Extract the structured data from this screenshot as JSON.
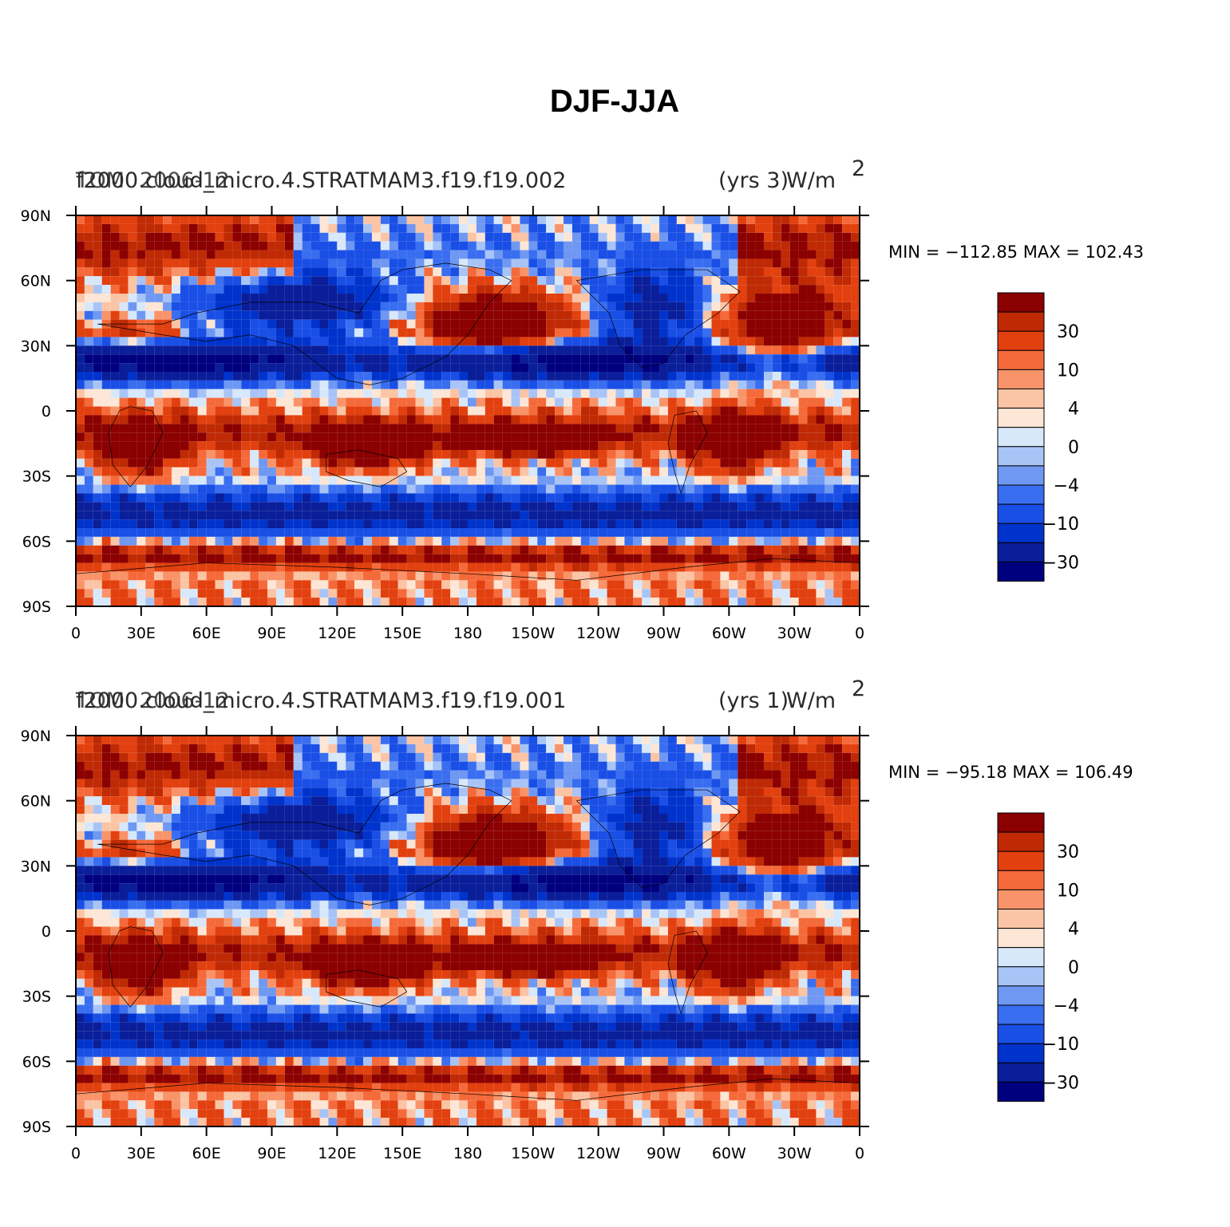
{
  "figure_title": "DJF-JJA",
  "palette": [
    "#00007f",
    "#0a1e9a",
    "#0033cc",
    "#1a4fe6",
    "#3a6ef0",
    "#6f98f2",
    "#a8c4f7",
    "#d8e8fb",
    "#fde6d5",
    "#fbc4a4",
    "#f9946a",
    "#f56a3a",
    "#e2400f",
    "#bf2a05",
    "#8b0000"
  ],
  "coastline_color": "#000000",
  "chart_data": [
    {
      "type": "heatmap",
      "name": "contour-map-top",
      "case_label": "f2000.cloud_micro.4.STRATMAM3.f19.f19.002",
      "overlap_label_1": "TOM",
      "overlap_label_2": "2006-12",
      "years_label": "(yrs 3)",
      "years_overlap": "W/m",
      "units_sup": "2",
      "min_max": "MIN = −112.85 MAX = 102.43",
      "x_ticks": [
        "0",
        "30E",
        "60E",
        "90E",
        "120E",
        "150E",
        "180",
        "150W",
        "120W",
        "90W",
        "60W",
        "30W",
        "0"
      ],
      "y_ticks": [
        "90N",
        "60N",
        "30N",
        "0",
        "30S",
        "60S",
        "90S"
      ],
      "colorbar_labels": [
        "30",
        "10",
        "4",
        "0",
        "−4",
        "−10",
        "−30"
      ],
      "xlim": [
        0,
        360
      ],
      "ylim": [
        -90,
        90
      ]
    },
    {
      "type": "heatmap",
      "name": "contour-map-bottom",
      "case_label": "f2000.cloud_micro.4.STRATMAM3.f19.f19.001",
      "overlap_label_1": "TOM",
      "overlap_label_2": "2006-12",
      "years_label": "(yrs 1)",
      "years_overlap": "W/m",
      "units_sup": "2",
      "min_max": "MIN = −95.18 MAX = 106.49",
      "x_ticks": [
        "0",
        "30E",
        "60E",
        "90E",
        "120E",
        "150E",
        "180",
        "150W",
        "120W",
        "90W",
        "60W",
        "30W",
        "0"
      ],
      "y_ticks": [
        "90N",
        "60N",
        "30N",
        "0",
        "30S",
        "60S",
        "90S"
      ],
      "colorbar_labels": [
        "30",
        "10",
        "4",
        "0",
        "−4",
        "−10",
        "−30"
      ],
      "xlim": [
        0,
        360
      ],
      "ylim": [
        -90,
        90
      ]
    }
  ]
}
